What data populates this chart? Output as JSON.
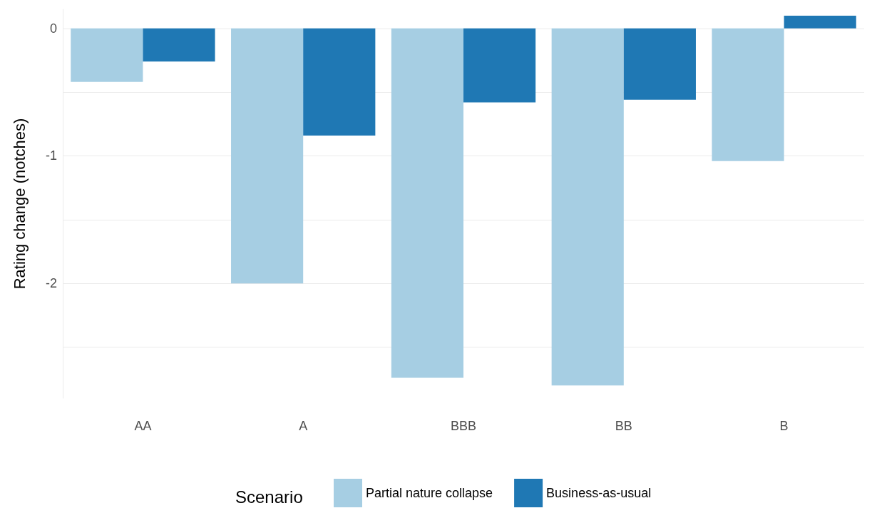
{
  "chart_data": {
    "type": "bar",
    "ylabel": "Rating change (notches)",
    "legend_title": "Scenario",
    "categories": [
      "AA",
      "A",
      "BBB",
      "BB",
      "B"
    ],
    "series": [
      {
        "name": "Partial nature collapse",
        "color": "#a6cee3",
        "values": [
          -0.42,
          -2.0,
          -2.74,
          -2.8,
          -1.04
        ]
      },
      {
        "name": "Business-as-usual",
        "color": "#1f78b4",
        "values": [
          -0.26,
          -0.84,
          -0.58,
          -0.56,
          0.1
        ]
      }
    ],
    "ylim": [
      -2.9,
      0.15
    ],
    "yticks": [
      {
        "value": -2.5,
        "label": null
      },
      -2,
      {
        "value": -1.5,
        "label": null
      },
      -1,
      {
        "value": -0.5,
        "label": null
      },
      0
    ],
    "grid": "y",
    "legend": "bottom"
  }
}
